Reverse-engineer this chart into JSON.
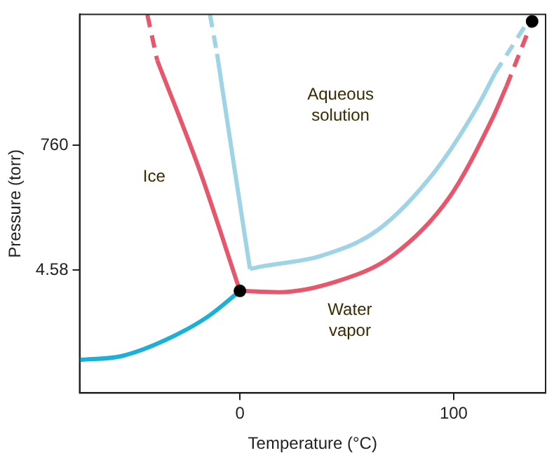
{
  "chart_data": {
    "type": "line",
    "xlabel": "Temperature (°C)",
    "ylabel": "Pressure (torr)",
    "log": "y",
    "xlim": [
      -75,
      143
    ],
    "ylim": [
      0.03,
      160000
    ],
    "xticks": [
      0,
      100
    ],
    "yticks": [
      4.58,
      760
    ],
    "grid": false,
    "legend": false,
    "marker": "none",
    "series": [
      {
        "color": "#1ab0d8",
        "x": [
          -75,
          -55.3,
          -35.3,
          -15.3,
          0
        ],
        "values": [
          0.116,
          0.136,
          0.257,
          0.67,
          1.95
        ]
      },
      {
        "color": "#e8566b",
        "line_style": "dashed",
        "x": [
          -43.3,
          -38.7
        ],
        "values": [
          157000,
          24400
        ]
      },
      {
        "color": "#e8566b",
        "x": [
          -38.7,
          -18.7,
          0
        ],
        "values": [
          24400,
          262,
          1.95
        ]
      },
      {
        "color": "#e8566b",
        "x": [
          0,
          18,
          44.7,
          71.3,
          98,
          118,
          124.7
        ],
        "values": [
          1.95,
          1.85,
          2.83,
          8.2,
          90,
          2210,
          8400
        ]
      },
      {
        "color": "#e8566b",
        "line_style": "dashed",
        "x": [
          124.7,
          136.7
        ],
        "values": [
          8400,
          120000
        ]
      },
      {
        "color": "#9fd4e6",
        "line_style": "dashed",
        "x": [
          -14,
          -10.7
        ],
        "values": [
          157000,
          31800
        ]
      },
      {
        "color": "#9fd4e6",
        "x": [
          -10.7,
          -3.3,
          4.7
        ],
        "values": [
          31800,
          447,
          4.8
        ]
      },
      {
        "color": "#9fd4e6",
        "x": [
          4.7,
          11.3,
          38,
          64.7,
          91.3,
          111.3,
          119.3
        ],
        "values": [
          4.8,
          5.4,
          8.2,
          23.9,
          262,
          3780,
          14300
        ]
      },
      {
        "color": "#9fd4e6",
        "line_style": "dashed",
        "x": [
          119.3,
          136.7
        ],
        "values": [
          14300,
          157000
        ]
      },
      {
        "type": "scatter",
        "marker": "circle",
        "color": "#000000",
        "x": [
          0,
          136.7
        ],
        "values": [
          1.95,
          120000
        ]
      }
    ],
    "annotations": [
      "Ice",
      "Aqueous\nsolution",
      "Water\nvapor"
    ]
  }
}
